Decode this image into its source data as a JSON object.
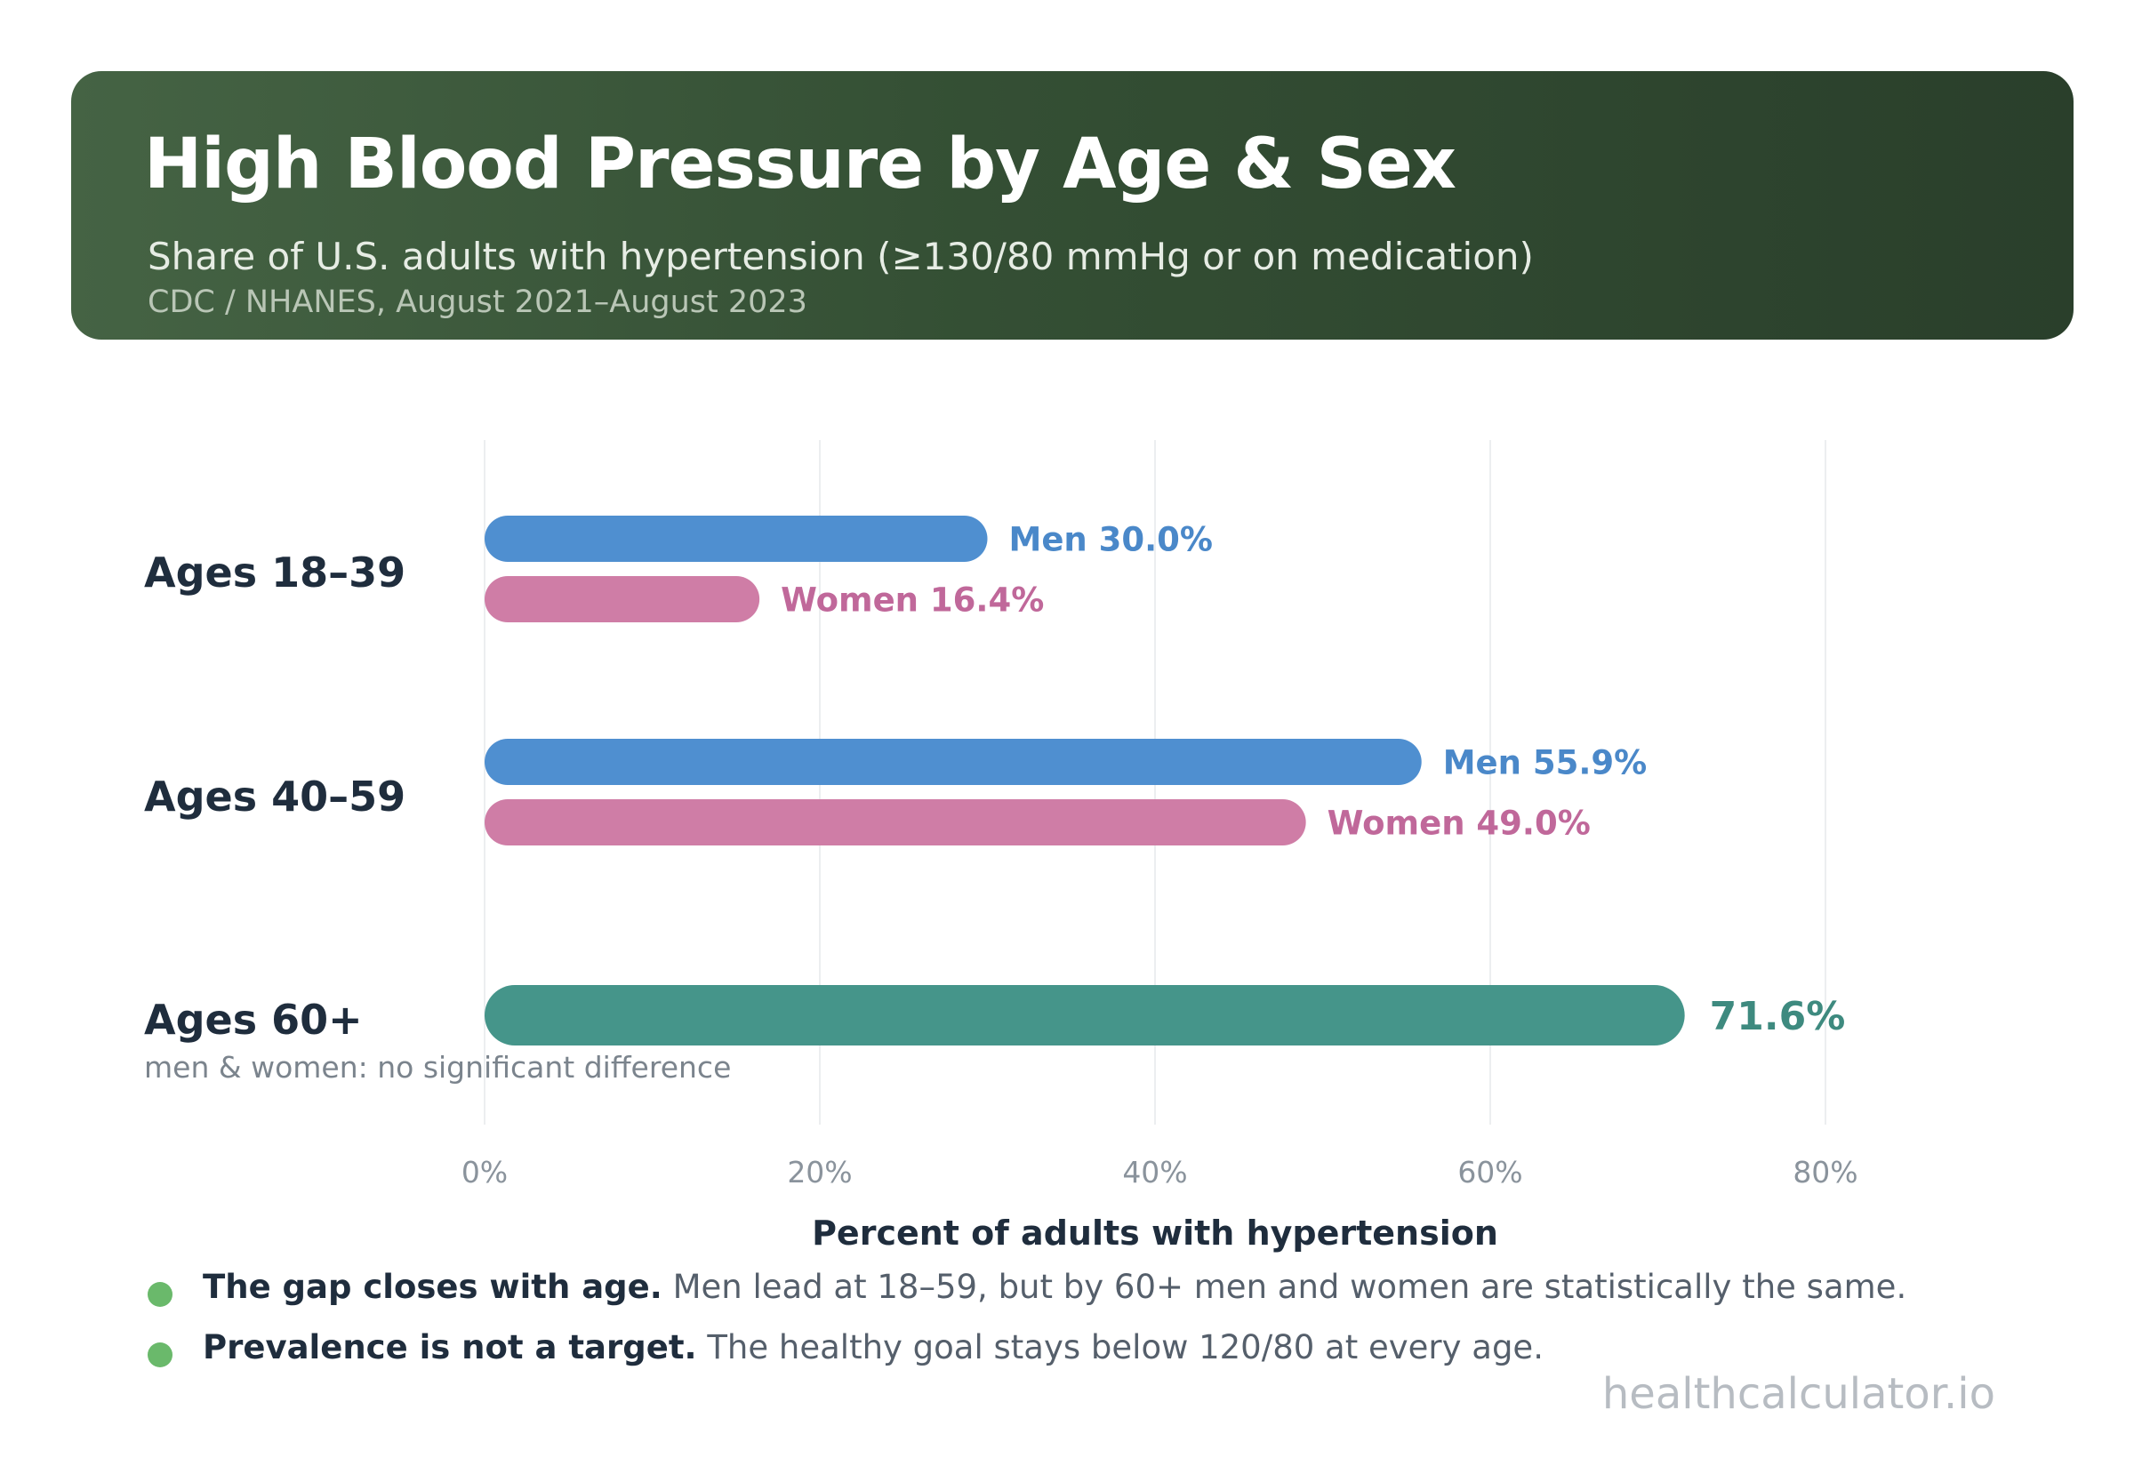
{
  "header": {
    "title": "High Blood Pressure by Age & Sex",
    "subtitle": "Share of U.S. adults with hypertension (≥130/80 mmHg or on medication)",
    "source": "CDC / NHANES, August 2021–August 2023"
  },
  "chart_data": {
    "type": "bar",
    "orientation": "horizontal",
    "title": "High Blood Pressure by Age & Sex",
    "subtitle": "Share of U.S. adults with hypertension (≥130/80 mmHg or on medication)",
    "xlabel": "Percent of adults with hypertension",
    "xlim": [
      0,
      80
    ],
    "xticks": [
      0,
      20,
      40,
      60,
      80
    ],
    "xtick_labels": [
      "0%",
      "20%",
      "40%",
      "60%",
      "80%"
    ],
    "grid": "vertical",
    "groups": [
      {
        "label": "Ages 18–39",
        "note": "",
        "bars": [
          {
            "series": "Men",
            "value": 30.0,
            "label": "Men 30.0%",
            "color": "#4f8fd0",
            "label_color": "#4a88c9"
          },
          {
            "series": "Women",
            "value": 16.4,
            "label": "Women 16.4%",
            "color": "#cf7da6",
            "label_color": "#c0689a"
          }
        ]
      },
      {
        "label": "Ages 40–59",
        "note": "",
        "bars": [
          {
            "series": "Men",
            "value": 55.9,
            "label": "Men 55.9%",
            "color": "#4f8fd0",
            "label_color": "#4a88c9"
          },
          {
            "series": "Women",
            "value": 49.0,
            "label": "Women 49.0%",
            "color": "#cf7da6",
            "label_color": "#c0689a"
          }
        ]
      },
      {
        "label": "Ages 60+",
        "note": "men & women: no significant difference",
        "bars": [
          {
            "series": "",
            "value": 71.6,
            "label": "71.6%",
            "color": "#45958a",
            "label_color": "#3e8a7f"
          }
        ]
      }
    ]
  },
  "takeaways": [
    {
      "strong": "The gap closes with age.",
      "text": " Men lead at 18–59, but by 60+ men and women are statistically the same."
    },
    {
      "strong": "Prevalence is not a target.",
      "text": " The healthy goal stays below 120/80 at every age."
    }
  ],
  "colors": {
    "accent": "#6ab96b",
    "men": "#4f8fd0",
    "women": "#cf7da6",
    "combined": "#45958a"
  },
  "brand": "healthcalculator.io"
}
